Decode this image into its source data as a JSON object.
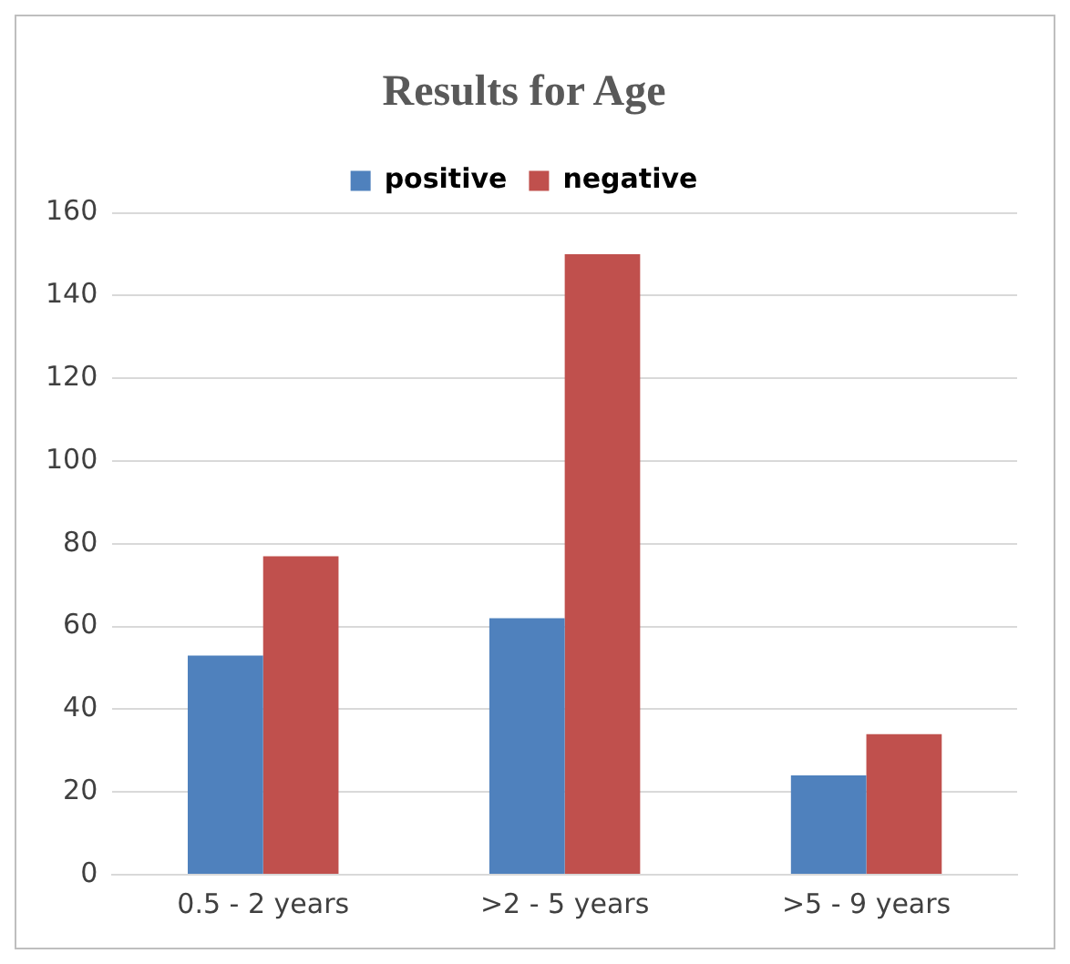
{
  "chart_data": {
    "type": "bar",
    "title": "Results for Age",
    "categories": [
      "0.5 - 2 years",
      ">2 - 5 years",
      ">5 - 9 years"
    ],
    "series": [
      {
        "name": "positive",
        "color": "#4f81bd",
        "values": [
          53,
          62,
          24
        ]
      },
      {
        "name": "negative",
        "color": "#c0504d",
        "values": [
          77,
          150,
          34
        ]
      }
    ],
    "ylim": [
      0,
      160
    ],
    "yticks": [
      0,
      20,
      40,
      60,
      80,
      100,
      120,
      140,
      160
    ],
    "grid": "y",
    "legend": "top"
  }
}
